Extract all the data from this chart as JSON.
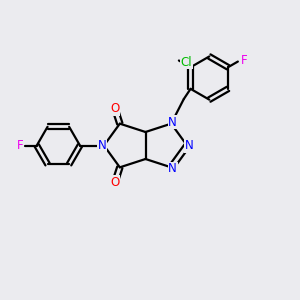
{
  "bg_color": "#ebebef",
  "bond_color": "#000000",
  "n_color": "#0000ff",
  "o_color": "#ff0000",
  "f_color": "#ee00ee",
  "cl_color": "#00bb00",
  "font_size": 8.5,
  "linewidth": 1.6,
  "figsize": [
    3.0,
    3.0
  ],
  "dpi": 100,
  "xlim": [
    0,
    10
  ],
  "ylim": [
    0,
    10
  ]
}
